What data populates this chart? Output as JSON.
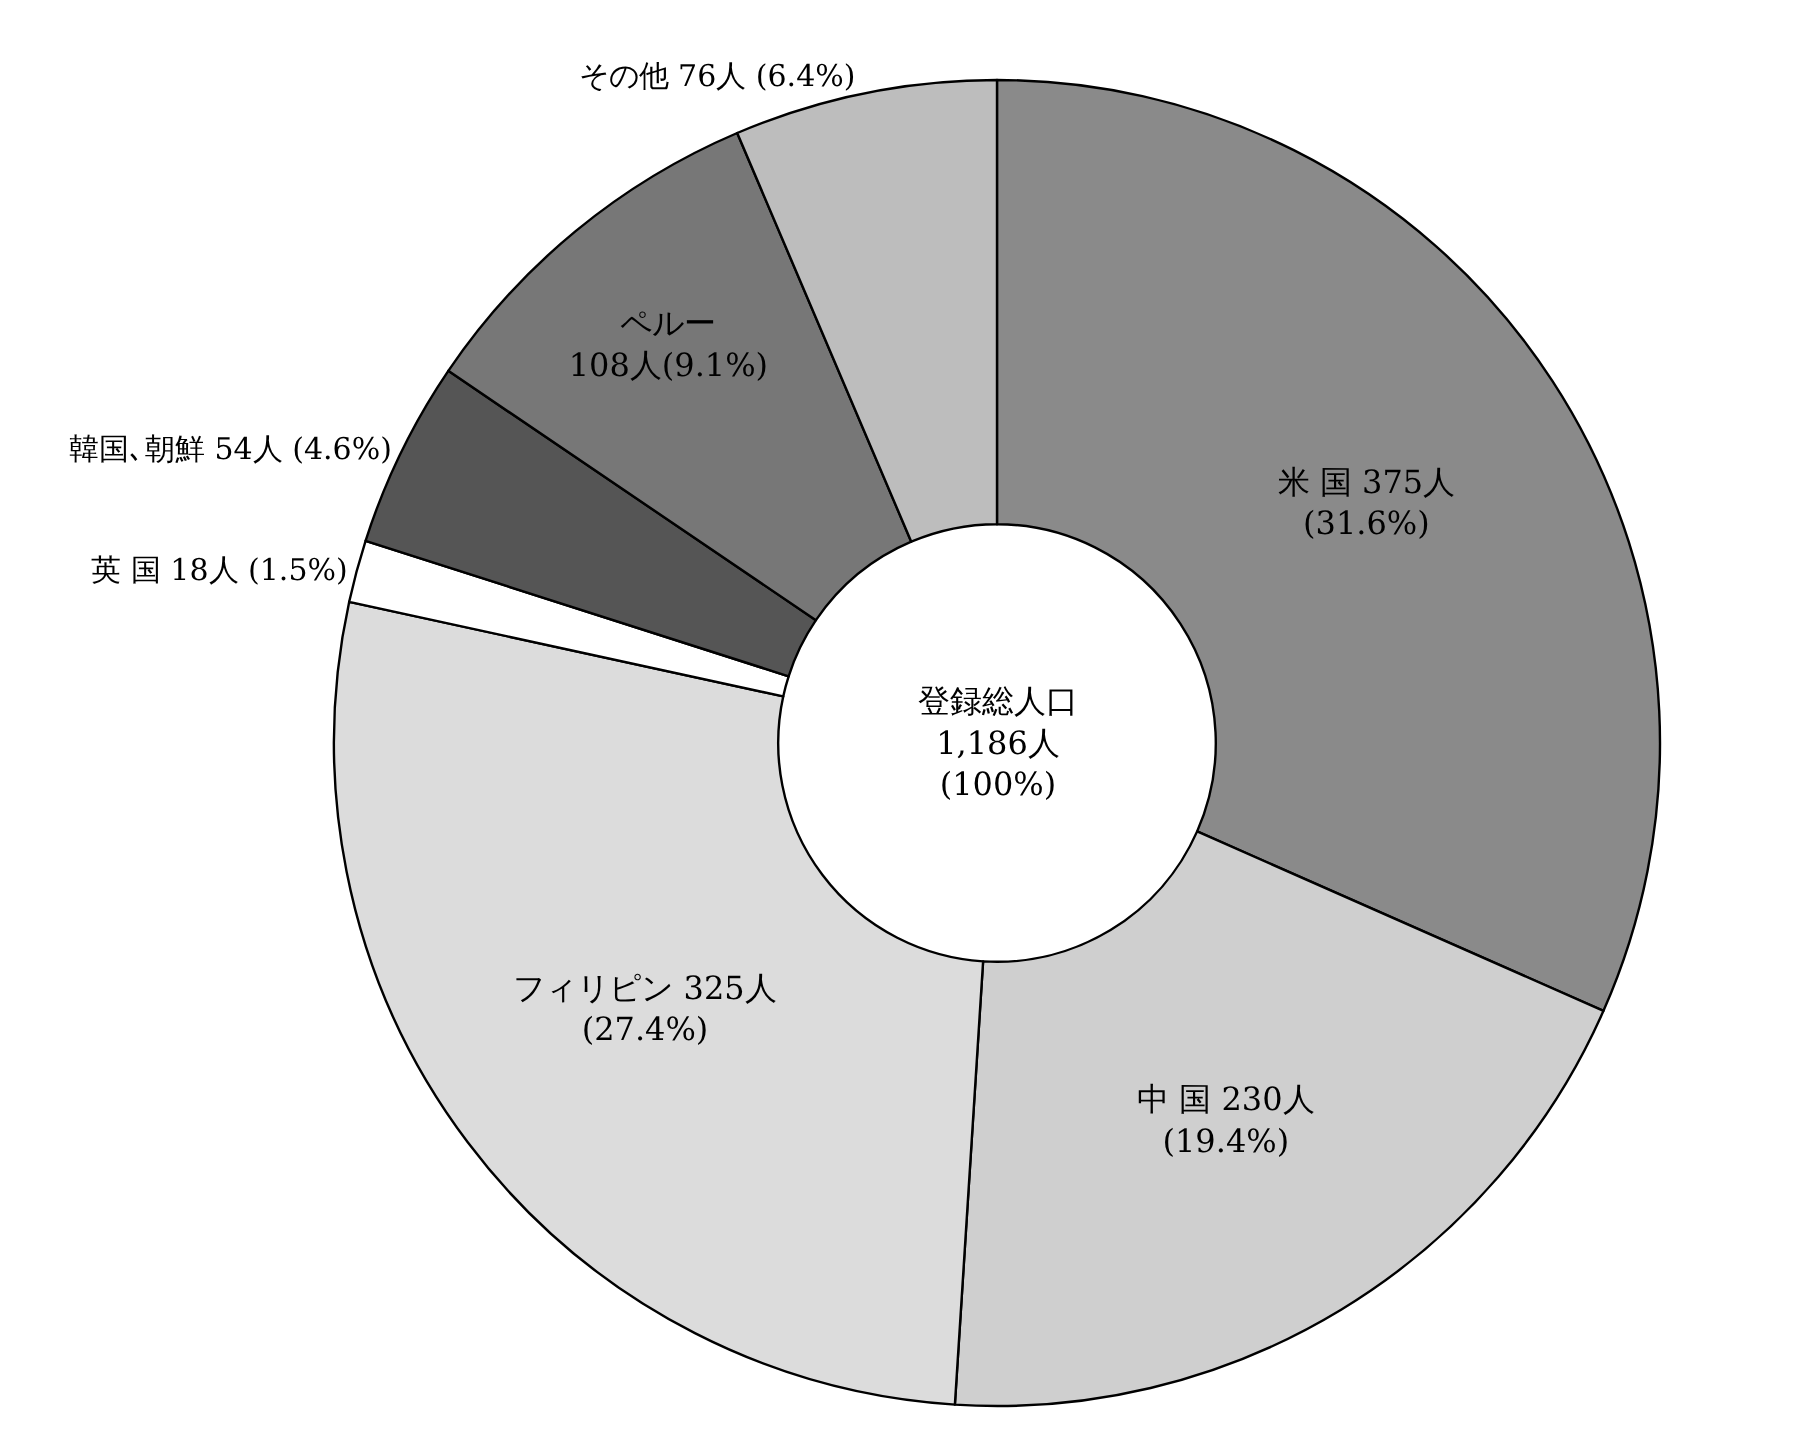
{
  "chart_data": {
    "type": "donut",
    "categories": [
      "米 国",
      "中 国",
      "フィリピン",
      "英 国",
      "韓国､朝鮮",
      "ペルー",
      "その他"
    ],
    "values": [
      375,
      230,
      325,
      18,
      54,
      108,
      76
    ],
    "value_labels": [
      "375人\n(31.6%)",
      "230人\n(19.4%)",
      "325人\n(27.4%)",
      "18人 (1.5%)",
      "54人 (4.6%)",
      "\n108人(9.1%)",
      "76人 (6.4%)"
    ],
    "colors": [
      "#8a8a8a",
      "#cfcfcf",
      "#dcdcdc",
      "#ffffff",
      "#555555",
      "#777777",
      "#bdbdbd"
    ],
    "annotations": [
      "登録総人口\n1,186人\n(100%)"
    ],
    "legend": false
  }
}
